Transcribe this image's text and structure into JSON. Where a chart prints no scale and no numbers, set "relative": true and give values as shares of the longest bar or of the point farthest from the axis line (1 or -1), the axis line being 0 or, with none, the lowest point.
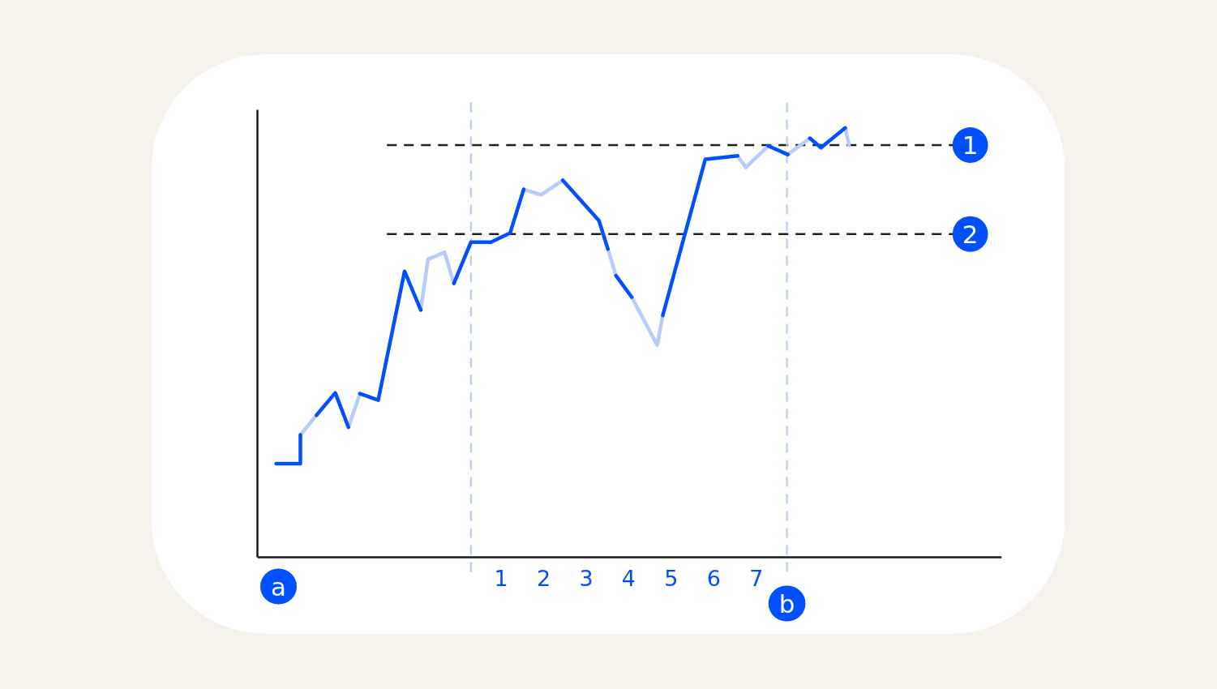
{
  "chart_data": {
    "type": "line",
    "relative": true,
    "xlim": [
      -4.73,
      12.77
    ],
    "xticks": [
      1,
      2,
      3,
      4,
      5,
      6,
      7
    ],
    "tick_labels": "x",
    "line_style": "solid",
    "series": [
      {
        "color": "#b7cbfd",
        "x": [
          -3.72,
          -3.34,
          -2.9,
          -2.59,
          -2.32,
          -1.6,
          -0.89,
          -0.72,
          -0.33,
          -0.11,
          0.7,
          1.53,
          1.94,
          2.45,
          3.0,
          3.51,
          3.7,
          3.9,
          4.07,
          4.67,
          4.8,
          5.7,
          6.56,
          6.75,
          7.28,
          7.5,
          7.74,
          8.26,
          8.7,
          9.09,
          9.18
        ],
        "values": [
          0.285,
          0.331,
          null,
          0.303,
          0.381,
          null,
          0.576,
          0.694,
          0.71,
          0.638,
          null,
          0.857,
          0.844,
          0.878,
          null,
          0.718,
          0.656,
          null,
          0.606,
          0.494,
          0.563,
          null,
          0.935,
          0.908,
          0.958,
          null,
          0.938,
          0.976,
          null,
          1.0,
          0.96
        ]
      },
      {
        "color": "#0050ff",
        "x": [
          -4.29,
          -3.72,
          -3.72,
          -3.53,
          -3.34,
          -2.9,
          -2.59,
          -2.45,
          -2.32,
          -1.89,
          -1.27,
          -0.89,
          -0.5,
          -0.11,
          0.29,
          0.76,
          1.21,
          1.53,
          2.0,
          2.45,
          3.3,
          3.51,
          3.6,
          3.7,
          4.07,
          4.4,
          4.8,
          5.8,
          6.56,
          6.9,
          7.28,
          7.74,
          8.0,
          8.26,
          8.52,
          9.09
        ],
        "values": [
          0.218,
          0.218,
          0.285,
          null,
          0.331,
          0.383,
          0.303,
          null,
          0.381,
          0.366,
          0.666,
          0.576,
          null,
          0.638,
          0.734,
          0.734,
          0.755,
          0.857,
          null,
          0.878,
          0.784,
          0.718,
          null,
          0.656,
          0.606,
          null,
          0.563,
          0.927,
          0.935,
          null,
          0.958,
          0.938,
          null,
          0.976,
          0.954,
          1.0
        ]
      }
    ],
    "ref_lines": [
      {
        "axis": "y",
        "value": 0.96,
        "color": "#1f1f1f",
        "line_style": "dashed"
      },
      {
        "axis": "y",
        "value": 0.753,
        "color": "#1f1f1f",
        "line_style": "dashed"
      },
      {
        "axis": "x",
        "value": 0.29,
        "color": "#b7cbfd",
        "line_style": "dashed"
      },
      {
        "axis": "x",
        "value": 7.72,
        "label": "b",
        "color": "#b7cbfd",
        "line_style": "dashed"
      }
    ],
    "annotations": [
      {
        "text": "1",
        "x": 12.03,
        "y": 0.96
      },
      {
        "text": "2",
        "x": 12.03,
        "y": 0.753
      },
      "a"
    ]
  }
}
